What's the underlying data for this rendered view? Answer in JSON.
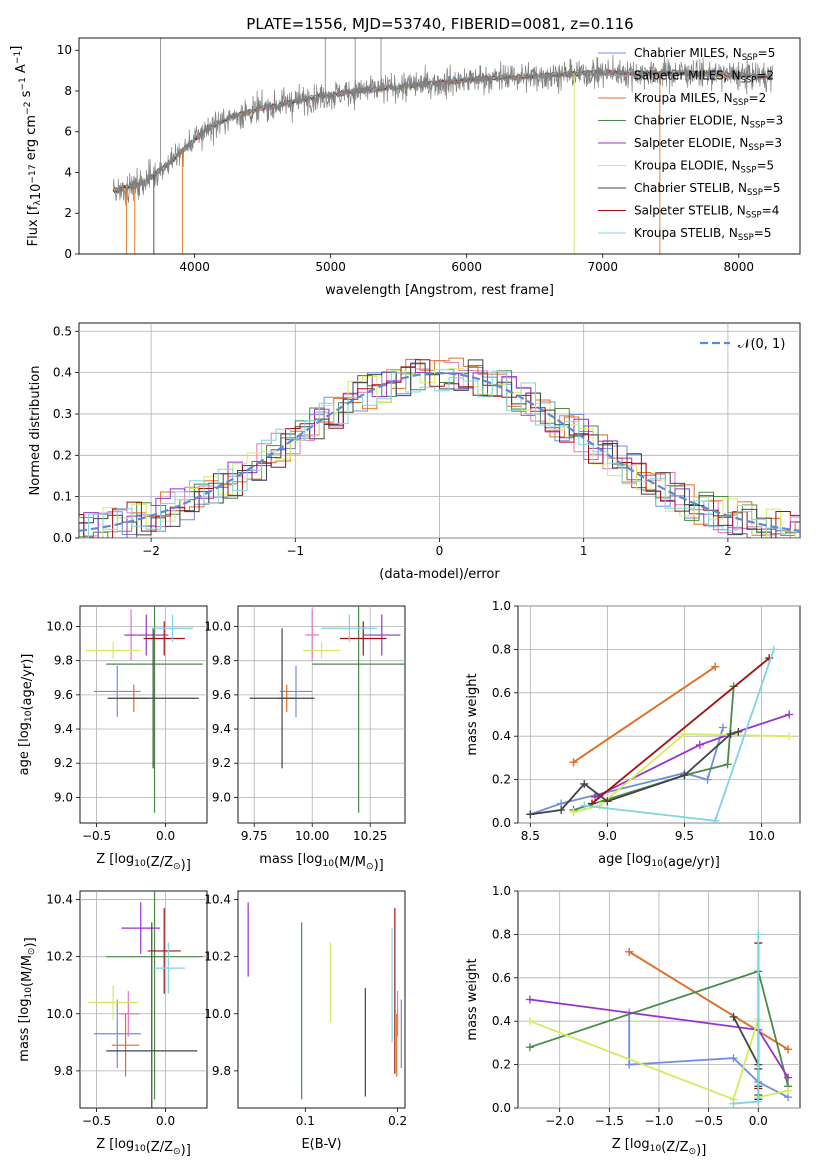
{
  "page": {
    "title": "PLATE=1556, MJD=53740, FIBERID=0081, z=0.116"
  },
  "colors": {
    "chabrier_miles": "#6f8fe0",
    "salpeter_miles": "#e377c2",
    "kroupa_miles": "#e07020",
    "chabrier_elodie": "#4a8a4a",
    "salpeter_elodie": "#9932cc",
    "kroupa_elodie": "#d4ec60",
    "chabrier_stelib": "#444444",
    "salpeter_stelib": "#a01010",
    "kroupa_stelib": "#7ed6e0",
    "data_spectrum": "#808080",
    "normal_curve": "#5b8bd6",
    "grid": "#b0b0b0"
  },
  "chart_data": [
    {
      "id": "spectrum",
      "type": "line",
      "title": "PLATE=1556, MJD=53740, FIBERID=0081, z=0.116",
      "xlabel": "wavelength [Angstrom, rest frame]",
      "ylabel_parts": [
        "Flux [f",
        "λ",
        "10",
        "−17",
        " erg cm",
        "−2",
        " s",
        "−1",
        " A",
        "−1",
        "]"
      ],
      "xlim": [
        3150,
        8450
      ],
      "ylim": [
        0,
        10.6
      ],
      "xticks": [
        4000,
        5000,
        6000,
        7000,
        8000
      ],
      "yticks": [
        0,
        2,
        4,
        6,
        8,
        10
      ],
      "grid": false,
      "legend_position": "upper-right",
      "legend": [
        {
          "label": "Chabrier MILES, N",
          "sub": "SSP",
          "tail": "=5",
          "color_key": "chabrier_miles"
        },
        {
          "label": "Salpeter MILES, N",
          "sub": "SSP",
          "tail": "=2",
          "color_key": "salpeter_miles"
        },
        {
          "label": "Kroupa MILES, N",
          "sub": "SSP",
          "tail": "=2",
          "color_key": "kroupa_miles"
        },
        {
          "label": "Chabrier ELODIE, N",
          "sub": "SSP",
          "tail": "=3",
          "color_key": "chabrier_elodie"
        },
        {
          "label": "Salpeter ELODIE, N",
          "sub": "SSP",
          "tail": "=3",
          "color_key": "salpeter_elodie"
        },
        {
          "label": "Kroupa ELODIE, N",
          "sub": "SSP",
          "tail": "=5",
          "color_key": "kroupa_elodie"
        },
        {
          "label": "Chabrier STELIB, N",
          "sub": "SSP",
          "tail": "=5",
          "color_key": "chabrier_stelib"
        },
        {
          "label": "Salpeter STELIB, N",
          "sub": "SSP",
          "tail": "=4",
          "color_key": "salpeter_stelib"
        },
        {
          "label": "Kroupa STELIB, N",
          "sub": "SSP",
          "tail": "=5",
          "color_key": "kroupa_stelib"
        }
      ],
      "continuum": {
        "x": [
          3400,
          3600,
          3800,
          3950,
          4100,
          4300,
          4600,
          4900,
          5200,
          5500,
          5800,
          6100,
          6400,
          6700,
          7000,
          7300,
          7600,
          7900,
          8100,
          8250
        ],
        "y": [
          3.1,
          3.4,
          4.4,
          5.3,
          6.2,
          6.8,
          7.3,
          7.7,
          8.0,
          8.2,
          8.4,
          8.6,
          8.7,
          8.8,
          8.9,
          8.85,
          8.9,
          8.8,
          8.75,
          8.7
        ]
      },
      "noise_sigma": 0.35,
      "dropouts_x": [
        3500,
        3560,
        3700,
        3910,
        6790,
        7420
      ],
      "spikes_x": [
        3750,
        4960,
        5180,
        5370
      ]
    },
    {
      "id": "residuals",
      "type": "line",
      "xlabel": "(data-model)/error",
      "ylabel": "Normed distribution",
      "xlim": [
        -2.5,
        2.5
      ],
      "ylim": [
        0,
        0.52
      ],
      "xticks": [
        -2,
        -1,
        0,
        1,
        2
      ],
      "yticks": [
        0.0,
        0.1,
        0.2,
        0.3,
        0.4,
        0.5
      ],
      "grid": true,
      "legend_position": "upper-right",
      "legend": [
        {
          "label": "𝒩(0, 1)",
          "color_key": "normal_curve",
          "dashed": true
        }
      ],
      "bin_width": 0.1,
      "curve_mean": 0,
      "curve_sigma": 1
    },
    {
      "id": "age_vs_Z",
      "type": "scatter",
      "xlabel_parts": [
        "Z [log",
        "10",
        "(Z/Z",
        "⊙",
        ")]"
      ],
      "ylabel_parts": [
        "age  [log",
        "10",
        "(age/yr)]"
      ],
      "xlim": [
        -0.62,
        0.3
      ],
      "ylim": [
        8.85,
        10.12
      ],
      "xticks": [
        -0.5,
        0.0
      ],
      "yticks": [
        9.0,
        9.2,
        9.4,
        9.6,
        9.8,
        10.0
      ],
      "grid": true,
      "points": [
        {
          "x": -0.35,
          "y": 9.62,
          "xerr": 0.17,
          "yerr": 0.15,
          "color_key": "chabrier_miles"
        },
        {
          "x": -0.25,
          "y": 9.95,
          "xerr": 0.03,
          "yerr": 0.15,
          "color_key": "salpeter_miles"
        },
        {
          "x": -0.23,
          "y": 9.58,
          "xerr": 0.1,
          "yerr": 0.08,
          "color_key": "kroupa_miles"
        },
        {
          "x": -0.08,
          "y": 9.78,
          "xerr": 0.35,
          "yerr": 0.87,
          "color_key": "chabrier_elodie"
        },
        {
          "x": -0.14,
          "y": 9.95,
          "xerr": 0.16,
          "yerr": 0.12,
          "color_key": "salpeter_elodie"
        },
        {
          "x": -0.38,
          "y": 9.86,
          "xerr": 0.2,
          "yerr": 0.05,
          "color_key": "kroupa_elodie"
        },
        {
          "x": -0.09,
          "y": 9.58,
          "xerr": 0.33,
          "yerr": 0.41,
          "color_key": "chabrier_stelib"
        },
        {
          "x": -0.01,
          "y": 9.93,
          "xerr": 0.15,
          "yerr": 0.1,
          "color_key": "salpeter_stelib"
        },
        {
          "x": 0.05,
          "y": 9.99,
          "xerr": 0.15,
          "yerr": 0.08,
          "color_key": "kroupa_stelib"
        }
      ]
    },
    {
      "id": "age_vs_mass",
      "type": "scatter",
      "xlabel_parts": [
        "mass [log",
        "10",
        "(M/M",
        "⊙",
        ")]"
      ],
      "xlim": [
        9.68,
        10.4
      ],
      "ylim": [
        8.85,
        10.12
      ],
      "xticks": [
        9.75,
        10.0,
        10.25
      ],
      "yticks": [
        9.0,
        9.2,
        9.4,
        9.6,
        9.8,
        10.0
      ],
      "grid": true,
      "points": [
        {
          "x": 9.93,
          "y": 9.62,
          "xerr": 0.07,
          "yerr": 0.15,
          "color_key": "chabrier_miles"
        },
        {
          "x": 10.0,
          "y": 9.95,
          "xerr": 0.03,
          "yerr": 0.15,
          "color_key": "salpeter_miles"
        },
        {
          "x": 9.89,
          "y": 9.58,
          "xerr": 0.04,
          "yerr": 0.08,
          "color_key": "kroupa_miles"
        },
        {
          "x": 10.2,
          "y": 9.78,
          "xerr": 0.2,
          "yerr": 0.87,
          "color_key": "chabrier_elodie"
        },
        {
          "x": 10.3,
          "y": 9.95,
          "xerr": 0.08,
          "yerr": 0.12,
          "color_key": "salpeter_elodie"
        },
        {
          "x": 10.04,
          "y": 9.86,
          "xerr": 0.08,
          "yerr": 0.05,
          "color_key": "kroupa_elodie"
        },
        {
          "x": 9.87,
          "y": 9.58,
          "xerr": 0.14,
          "yerr": 0.41,
          "color_key": "chabrier_stelib"
        },
        {
          "x": 10.22,
          "y": 9.93,
          "xerr": 0.1,
          "yerr": 0.1,
          "color_key": "salpeter_stelib"
        },
        {
          "x": 10.16,
          "y": 9.99,
          "xerr": 0.12,
          "yerr": 0.08,
          "color_key": "kroupa_stelib"
        }
      ]
    },
    {
      "id": "weight_vs_age",
      "type": "line",
      "xlabel_parts": [
        "age  [log",
        "10",
        "(age/yr)]"
      ],
      "ylabel": "mass weight",
      "xlim": [
        8.42,
        10.25
      ],
      "ylim": [
        0.0,
        1.0
      ],
      "xticks": [
        8.5,
        9.0,
        9.5,
        10.0
      ],
      "yticks": [
        0.0,
        0.2,
        0.4,
        0.6,
        0.8,
        1.0
      ],
      "grid": true,
      "series": [
        {
          "color_key": "chabrier_miles",
          "points": [
            [
              8.5,
              0.04
            ],
            [
              8.7,
              0.09
            ],
            [
              9.5,
              0.23
            ],
            [
              9.65,
              0.2
            ],
            [
              9.75,
              0.44
            ]
          ]
        },
        {
          "color_key": "salpeter_miles",
          "points": [
            [
              8.78,
              0.28
            ],
            [
              9.7,
              0.72
            ]
          ]
        },
        {
          "color_key": "kroupa_miles",
          "points": [
            [
              8.78,
              0.28
            ],
            [
              9.7,
              0.72
            ]
          ]
        },
        {
          "color_key": "chabrier_elodie",
          "points": [
            [
              8.78,
              0.06
            ],
            [
              9.5,
              0.22
            ],
            [
              9.78,
              0.27
            ],
            [
              9.82,
              0.63
            ]
          ]
        },
        {
          "color_key": "salpeter_elodie",
          "points": [
            [
              8.92,
              0.12
            ],
            [
              9.6,
              0.36
            ],
            [
              9.8,
              0.41
            ],
            [
              10.18,
              0.5
            ]
          ]
        },
        {
          "color_key": "kroupa_elodie",
          "points": [
            [
              8.78,
              0.05
            ],
            [
              8.95,
              0.08
            ],
            [
              9.5,
              0.41
            ],
            [
              10.18,
              0.4
            ]
          ]
        },
        {
          "color_key": "chabrier_stelib",
          "points": [
            [
              8.5,
              0.04
            ],
            [
              8.7,
              0.06
            ],
            [
              8.85,
              0.18
            ],
            [
              9.0,
              0.1
            ],
            [
              9.5,
              0.22
            ],
            [
              9.8,
              0.41
            ],
            [
              9.85,
              0.42
            ]
          ]
        },
        {
          "color_key": "salpeter_stelib",
          "points": [
            [
              8.9,
              0.09
            ],
            [
              10.05,
              0.76
            ]
          ]
        },
        {
          "color_key": "kroupa_stelib",
          "points": [
            [
              8.85,
              0.08
            ],
            [
              9.7,
              0.01
            ],
            [
              10.08,
              0.8
            ]
          ]
        }
      ]
    },
    {
      "id": "mass_vs_Z",
      "type": "scatter",
      "xlabel_parts": [
        "Z [log",
        "10",
        "(Z/Z",
        "⊙",
        ")]"
      ],
      "ylabel_parts": [
        "mass [log",
        "10",
        "(M/M",
        "⊙",
        ")]"
      ],
      "xlim": [
        -0.62,
        0.3
      ],
      "ylim": [
        9.67,
        10.43
      ],
      "xticks": [
        -0.5,
        0.0
      ],
      "yticks": [
        9.8,
        10.0,
        10.2,
        10.4
      ],
      "grid": true,
      "points": [
        {
          "x": -0.35,
          "y": 9.93,
          "xerr": 0.17,
          "yerr": 0.12,
          "color_key": "chabrier_miles"
        },
        {
          "x": -0.27,
          "y": 10.0,
          "xerr": 0.08,
          "yerr": 0.08,
          "color_key": "salpeter_miles"
        },
        {
          "x": -0.29,
          "y": 9.89,
          "xerr": 0.1,
          "yerr": 0.11,
          "color_key": "kroupa_miles"
        },
        {
          "x": -0.08,
          "y": 10.2,
          "xerr": 0.35,
          "yerr": 0.5,
          "color_key": "chabrier_elodie"
        },
        {
          "x": -0.18,
          "y": 10.3,
          "xerr": 0.14,
          "yerr": 0.09,
          "color_key": "salpeter_elodie"
        },
        {
          "x": -0.38,
          "y": 10.04,
          "xerr": 0.18,
          "yerr": 0.06,
          "color_key": "kroupa_elodie"
        },
        {
          "x": -0.1,
          "y": 9.87,
          "xerr": 0.33,
          "yerr": 0.45,
          "color_key": "chabrier_stelib"
        },
        {
          "x": -0.01,
          "y": 10.22,
          "xerr": 0.12,
          "yerr": 0.15,
          "color_key": "salpeter_stelib"
        },
        {
          "x": 0.02,
          "y": 10.16,
          "xerr": 0.12,
          "yerr": 0.09,
          "color_key": "kroupa_stelib"
        }
      ]
    },
    {
      "id": "mass_vs_EBV",
      "type": "scatter",
      "xlabel": "E(B-V)",
      "xlim": [
        0.027,
        0.208
      ],
      "ylim": [
        9.67,
        10.43
      ],
      "xticks": [
        0.0,
        0.1,
        0.2
      ],
      "yticks": [
        9.8,
        10.0,
        10.2,
        10.4
      ],
      "grid": false,
      "points": [
        {
          "x": 0.204,
          "y": 9.93,
          "yerr": 0.12,
          "color_key": "chabrier_miles"
        },
        {
          "x": 0.2,
          "y": 10.0,
          "yerr": 0.08,
          "color_key": "salpeter_miles"
        },
        {
          "x": 0.199,
          "y": 9.89,
          "yerr": 0.11,
          "color_key": "kroupa_miles"
        },
        {
          "x": 0.096,
          "y": 10.01,
          "yerr": 0.31,
          "color_key": "chabrier_elodie"
        },
        {
          "x": 0.038,
          "y": 10.26,
          "yerr": 0.13,
          "color_key": "salpeter_elodie"
        },
        {
          "x": 0.127,
          "y": 10.11,
          "yerr": 0.14,
          "color_key": "kroupa_elodie"
        },
        {
          "x": 0.165,
          "y": 9.9,
          "yerr": 0.19,
          "color_key": "chabrier_stelib"
        },
        {
          "x": 0.197,
          "y": 10.08,
          "yerr": 0.29,
          "color_key": "salpeter_stelib"
        },
        {
          "x": 0.194,
          "y": 10.1,
          "yerr": 0.2,
          "color_key": "kroupa_stelib"
        }
      ]
    },
    {
      "id": "weight_vs_Z",
      "type": "line",
      "xlabel_parts": [
        "Z [log",
        "10",
        "(Z/Z",
        "⊙",
        ")]"
      ],
      "ylabel": "mass weight",
      "xlim": [
        -2.42,
        0.42
      ],
      "ylim": [
        0.0,
        1.0
      ],
      "xticks": [
        -2.0,
        -1.5,
        -1.0,
        -0.5,
        0.0
      ],
      "yticks": [
        0.0,
        0.2,
        0.4,
        0.6,
        0.8,
        1.0
      ],
      "grid": true,
      "series": [
        {
          "color_key": "chabrier_miles",
          "points": [
            [
              -1.3,
              0.44
            ],
            [
              -1.3,
              0.2
            ],
            [
              -0.25,
              0.23
            ],
            [
              0.0,
              0.12
            ],
            [
              0.3,
              0.05
            ]
          ]
        },
        {
          "color_key": "salpeter_miles",
          "points": [
            [
              -1.3,
              0.72
            ],
            [
              0.3,
              0.27
            ]
          ]
        },
        {
          "color_key": "kroupa_miles",
          "points": [
            [
              -1.3,
              0.72
            ],
            [
              0.3,
              0.27
            ]
          ]
        },
        {
          "color_key": "chabrier_elodie",
          "points": [
            [
              -2.3,
              0.28
            ],
            [
              0.0,
              0.63
            ],
            [
              0.3,
              0.1
            ]
          ]
        },
        {
          "color_key": "salpeter_elodie",
          "points": [
            [
              -2.3,
              0.5
            ],
            [
              0.0,
              0.36
            ],
            [
              0.3,
              0.14
            ]
          ]
        },
        {
          "color_key": "kroupa_elodie",
          "points": [
            [
              -2.3,
              0.4
            ],
            [
              -0.25,
              0.04
            ],
            [
              0.0,
              0.41
            ],
            [
              0.0,
              0.05
            ],
            [
              0.3,
              0.08
            ]
          ]
        },
        {
          "color_key": "chabrier_stelib",
          "points": [
            [
              -0.25,
              0.42
            ],
            [
              0.0,
              0.2
            ],
            [
              0.0,
              0.18
            ],
            [
              0.0,
              0.1
            ],
            [
              0.0,
              0.06
            ],
            [
              0.0,
              0.04
            ]
          ]
        },
        {
          "color_key": "salpeter_stelib",
          "points": [
            [
              0.0,
              0.76
            ],
            [
              0.0,
              0.09
            ]
          ]
        },
        {
          "color_key": "kroupa_stelib",
          "points": [
            [
              -0.25,
              0.02
            ],
            [
              0.0,
              0.03
            ],
            [
              0.0,
              0.8
            ]
          ]
        }
      ]
    }
  ],
  "residual_hist_order": [
    "chabrier_miles",
    "salpeter_miles",
    "kroupa_miles",
    "chabrier_elodie",
    "salpeter_elodie",
    "kroupa_elodie",
    "chabrier_stelib",
    "salpeter_stelib",
    "kroupa_stelib"
  ]
}
